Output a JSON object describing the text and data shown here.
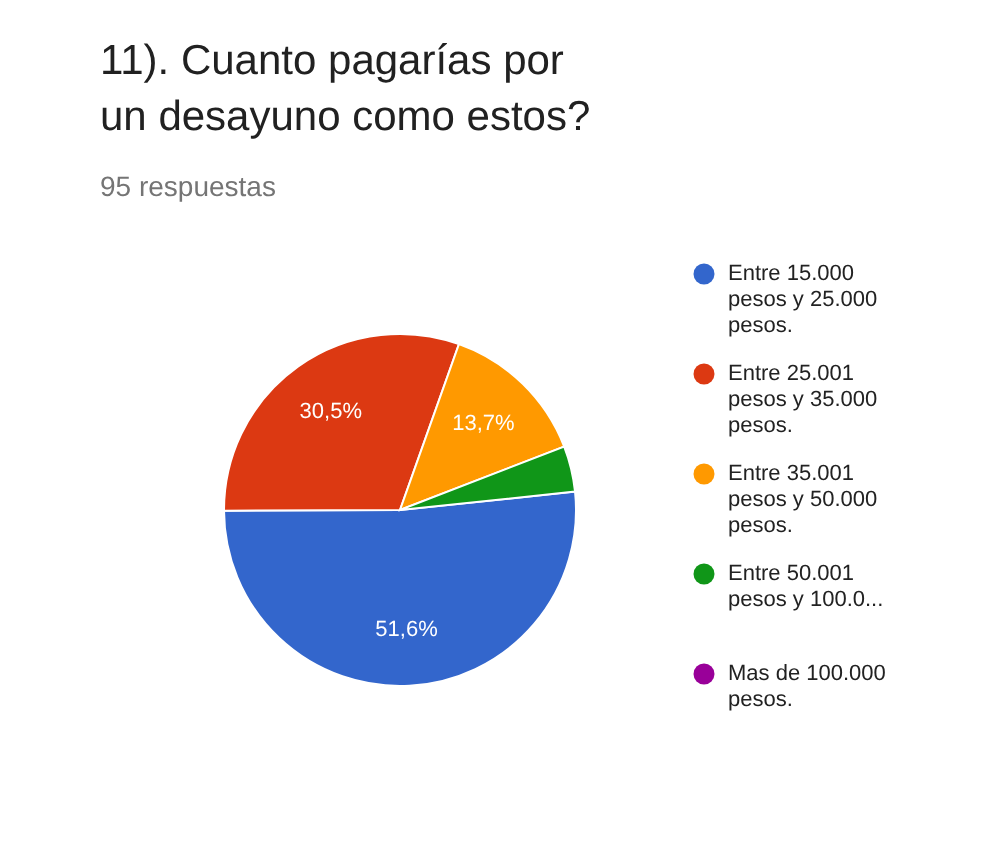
{
  "chart_data": {
    "type": "pie",
    "title": "11). Cuanto pagarías por un desayuno como estos?",
    "subtitle": "95 respuestas",
    "categories": [
      "Entre 15.000 pesos y 25.000 pesos.",
      "Entre 25.001 pesos y 35.000 pesos.",
      "Entre 35.001 pesos y 50.000 pesos.",
      "Entre 50.001 pesos y 100.0...",
      "Mas de 100.000 pesos."
    ],
    "values": [
      51.6,
      30.5,
      13.7,
      4.2,
      0
    ],
    "colors": [
      "#3366cc",
      "#dc3912",
      "#ff9900",
      "#109618",
      "#990099"
    ],
    "value_labels": [
      "51,6%",
      "30,5%",
      "13,7%",
      null,
      null
    ],
    "legend": "right"
  }
}
